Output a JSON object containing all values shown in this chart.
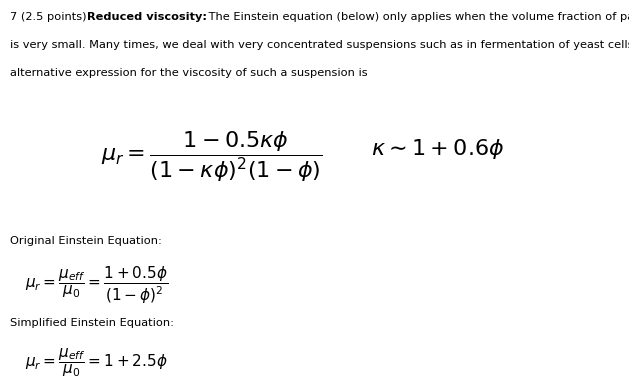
{
  "bg_color": "#ffffff",
  "text_color": "#000000",
  "fig_width": 6.29,
  "fig_height": 3.86,
  "dpi": 100,
  "header_text_1": "7 (2.5 points) ",
  "header_bold": "Reduced viscosity:",
  "header_text_2": " The Einstein equation (below) only applies when the volume fraction of particles",
  "header_line2": "is very small. Many times, we deal with very concentrated suspensions such as in fermentation of yeast cells. An",
  "header_line3": "alternative expression for the viscosity of such a suspension is",
  "main_formula": "$\\mu_r = \\dfrac{1-0.5\\kappa\\phi}{(1-\\kappa\\phi)^2(1-\\phi)}$",
  "kappa_formula": "$\\kappa {\\sim} 1+0.6\\phi$",
  "label_original": "Original Einstein Equation:",
  "original_formula": "$\\mu_r = \\dfrac{\\mu_{\\mathit{eff}}}{\\mu_0} = \\dfrac{1+0.5\\phi}{(1-\\phi)^2}$",
  "label_simplified": "Simplified Einstein Equation:",
  "simplified_formula": "$\\mu_r = \\dfrac{\\mu_{\\mathit{eff}}}{\\mu_0} = 1+2.5\\phi$",
  "main_formula_fs": 16,
  "kappa_formula_fs": 16,
  "original_formula_fs": 11,
  "simplified_formula_fs": 11,
  "header_fs": 8.2,
  "label_fs": 8.2
}
